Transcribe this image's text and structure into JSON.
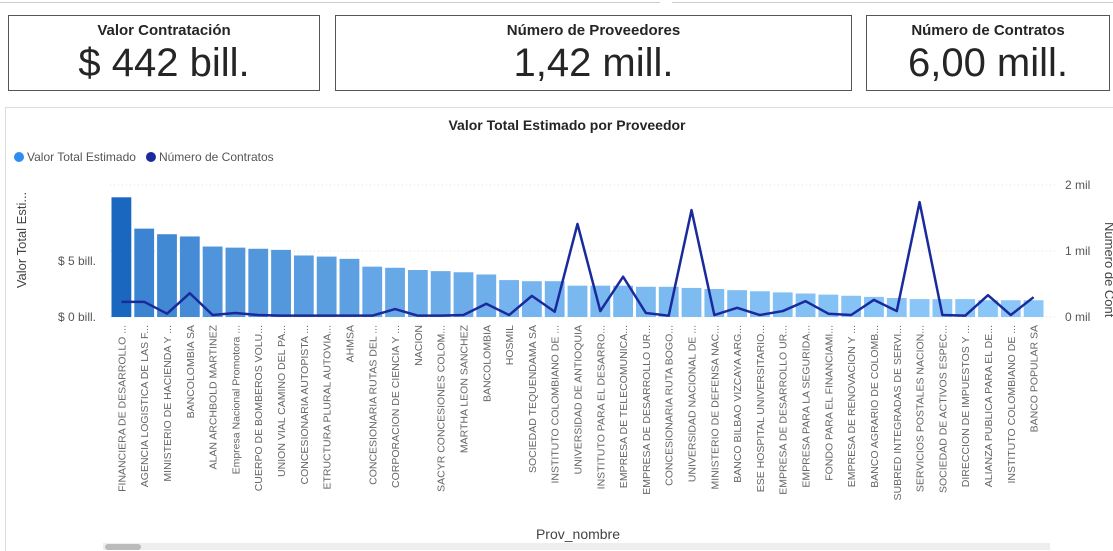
{
  "cards": [
    {
      "label": "Valor Contratación",
      "value": "$ 442 bill."
    },
    {
      "label": "Número de Proveedores",
      "value": "1,42 mill."
    },
    {
      "label": "Número de Contratos",
      "value": "6,00 mill."
    }
  ],
  "chart_data": {
    "type": "bar_line",
    "title": "Valor Total Estimado por Proveedor",
    "x_label": "Prov_nombre",
    "y_label": "Valor Total Esti...",
    "y2_label": "Número de Cont",
    "categories": [
      "FINANCIERA DE DESARROLLO ...",
      "AGENCIA LOGISTICA DE LAS F...",
      "MINISTERIO DE HACIENDA Y ...",
      "BANCOLOMBIA SA",
      "ALAN ARCHBOLD MARTINEZ",
      "Empresa Nacional Promotora ...",
      "CUERPO DE BOMBEROS VOLU...",
      "UNION VIAL CAMINO DEL PA...",
      "CONCESIONARIA AUTOPISTA ...",
      "ETRUCTURA PLURAL AUTOVIA...",
      "AHMSA",
      "CONCESIONARIA RUTAS DEL ...",
      "CORPORACION DE CIENCIA Y ...",
      "NACION",
      "SACYR CONCESIONES COLOM...",
      "MARTHA LEON SANCHEZ",
      "BANCOLOMBIA",
      "HOSMIL",
      "SOCIEDAD TEQUENDAMA SA",
      "INSTITUTO COLOMBIANO DE ...",
      "UNIVERSIDAD DE ANTIOQUIA",
      "INSTITUTO PARA EL DESARRO...",
      "EMPRESA DE TELECOMUNICA...",
      "EMPRESA DE DESARROLLO UR...",
      "CONCESIONARIA RUTA BOGO...",
      "UNIVERSIDAD NACIONAL DE ...",
      "MINISTERIO DE DEFENSA NAC...",
      "BANCO BILBAO VIZCAYA ARG...",
      "ESE HOSPITAL UNIVERSITARIO...",
      "EMPRESA DE DESARROLLO UR...",
      "EMPRESA PARA LA SEGURIDA...",
      "FONDO PARA EL FINANCIAMI...",
      "EMPRESA DE RENOVACION Y ...",
      "BANCO AGRARIO DE COLOMB...",
      "SUBRED INTEGRADAS DE SERVI...",
      "SERVICIOS POSTALES NACION...",
      "SOCIEDAD DE ACTIVOS ESPEC...",
      "DIRECCION DE IMPUESTOS Y ...",
      "ALIANZA PUBLICA PARA EL DE...",
      "INSTITUTO COLOMBIANO DE ...",
      "BANCO POPULAR SA"
    ],
    "series": [
      {
        "name": "Valor Total Estimado",
        "type": "bar",
        "color": "#2b8ff0",
        "color_scale": [
          "#8ac6f8",
          "#1a67c0"
        ],
        "values": [
          10.7,
          7.9,
          7.4,
          7.2,
          6.3,
          6.2,
          6.1,
          6.0,
          5.5,
          5.4,
          5.2,
          4.5,
          4.4,
          4.2,
          4.1,
          4.0,
          3.8,
          3.3,
          3.2,
          3.2,
          2.8,
          2.8,
          2.8,
          2.7,
          2.7,
          2.6,
          2.5,
          2.4,
          2.3,
          2.2,
          2.1,
          2.0,
          1.9,
          1.8,
          1.7,
          1.6,
          1.6,
          1.6,
          1.5,
          1.5,
          1.5
        ]
      },
      {
        "name": "Número de Contratos",
        "type": "line",
        "axis": "y2",
        "color": "#1a2a9c",
        "values": [
          0.23,
          0.23,
          0.05,
          0.36,
          0.03,
          0.06,
          0.03,
          0.02,
          0.02,
          0.02,
          0.02,
          0.02,
          0.12,
          0.02,
          0.02,
          0.03,
          0.2,
          0.03,
          0.32,
          0.08,
          1.41,
          0.09,
          0.61,
          0.06,
          0.02,
          1.62,
          0.03,
          0.14,
          0.03,
          0.09,
          0.24,
          0.05,
          0.03,
          0.26,
          0.09,
          1.74,
          0.03,
          0.02,
          0.33,
          0.03,
          0.3
        ]
      }
    ],
    "ylim": [
      0,
      11.8
    ],
    "yticks": [
      {
        "value": 0,
        "label": "$ 0 bill."
      },
      {
        "value": 5,
        "label": "$ 5 bill."
      }
    ],
    "y2lim": [
      0,
      2
    ],
    "y2ticks": [
      {
        "value": 0,
        "label": "0 mil"
      },
      {
        "value": 1,
        "label": "1 mil"
      },
      {
        "value": 2,
        "label": "2 mil"
      }
    ],
    "grid": true,
    "legend": "top-left"
  }
}
